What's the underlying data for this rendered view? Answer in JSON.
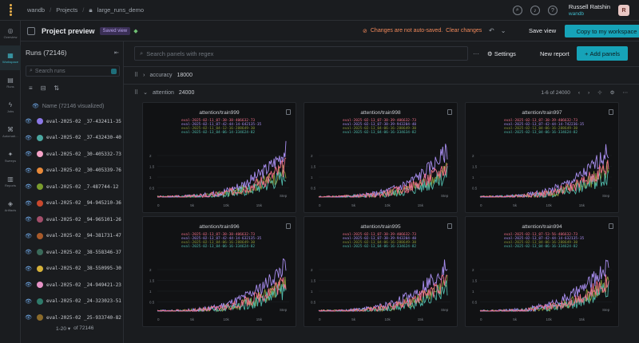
{
  "topbar": {
    "org": "wandb",
    "section": "Projects",
    "project": "large_runs_demo",
    "user_name": "Russell Ratshin",
    "user_team": "wandb",
    "avatar_letter": "R",
    "help_icon": "?"
  },
  "rail": [
    {
      "icon": "◎",
      "label": "Overview",
      "active": false
    },
    {
      "icon": "▦",
      "label": "Workspace",
      "active": true
    },
    {
      "icon": "▤",
      "label": "Runs",
      "active": false
    },
    {
      "icon": "ϟ",
      "label": "Jobs",
      "active": false
    },
    {
      "icon": "⌘",
      "label": "Automati…",
      "active": false
    },
    {
      "icon": "✦",
      "label": "Sweeps",
      "active": false
    },
    {
      "icon": "▥",
      "label": "Reports",
      "active": false
    },
    {
      "icon": "◈",
      "label": "Artifacts",
      "active": false
    }
  ],
  "header": {
    "title": "Project preview",
    "saved_badge": "Saved view",
    "warning": "Changes are not auto-saved.",
    "warning_link": "Clear changes",
    "save_view": "Save view",
    "copy_btn": "Copy to my workspace"
  },
  "runs": {
    "title": "Runs (72146)",
    "search_placeholder": "Search runs",
    "name_header": "Name",
    "name_header_note": "(72146 visualized)",
    "pager": "1-20 ▾",
    "pager_total": "of 72146",
    "rows": [
      {
        "name": "eval-2025-02 _37-432411-35",
        "color": "#8b78e6"
      },
      {
        "name": "eval-2025-02 _37-432430-40",
        "color": "#4aa7a0"
      },
      {
        "name": "eval-2025-02 _30-405332-73",
        "color": "#f5a3c8"
      },
      {
        "name": "eval-2025-02 _30-405339-76",
        "color": "#e88a3a"
      },
      {
        "name": "eval-2025-02 _7-487744-12",
        "color": "#7a9c2d"
      },
      {
        "name": "eval-2025-02 _94-945210-36",
        "color": "#c9482d"
      },
      {
        "name": "eval-2025-02 _94-965101-26",
        "color": "#a34e6a"
      },
      {
        "name": "eval-2025-02 _94-381731-47",
        "color": "#a85a2a"
      },
      {
        "name": "eval-2025-02 _38-558346-37",
        "color": "#3a6a5a"
      },
      {
        "name": "eval-2025-02 _38-550995-30",
        "color": "#d6b23a"
      },
      {
        "name": "eval-2025-02 _24-949421-23",
        "color": "#e693c7"
      },
      {
        "name": "eval-2025-02 _24-323023-51",
        "color": "#2f7a6a"
      },
      {
        "name": "eval-2025-02 _25-933740-82",
        "color": "#8a6a2a"
      }
    ]
  },
  "workspace": {
    "search_placeholder": "Search panels with regex",
    "settings": "Settings",
    "new_report": "New report",
    "add_panels": "Add panels",
    "section1_name": "accuracy",
    "section1_count": "18000",
    "section2_name": "attention",
    "section2_count": "24000",
    "page_info": "1-6 of 24000"
  },
  "chart_data": [
    {
      "type": "line",
      "title": "attention/train999",
      "xlabel": "Step",
      "x_ticks": [
        "0",
        "5k",
        "10k",
        "15k"
      ],
      "y_ticks": [
        "2",
        "1.5",
        "1",
        "0.5"
      ],
      "legend": [
        "eval-2025-02-11_07-38-38-406632-73",
        "eval-2025-02-11_07-42-44-14-642135-35",
        "eval-2025-02-11_04-12-16-288649-30",
        "eval-2025-02-13_04-06-14-334624-82"
      ]
    },
    {
      "type": "line",
      "title": "attention/train998",
      "xlabel": "Step",
      "x_ticks": [
        "0",
        "5k",
        "10k",
        "15k"
      ],
      "y_ticks": [
        "2",
        "1.5",
        "1",
        "0.5"
      ],
      "legend": [
        "eval-2025-02-13_07-38-39-406632-73",
        "eval-2025-02-13_07-38-39-943204-40",
        "eval-2025-02-13_04-06-16-288649-30",
        "eval-2025-02-13_04-06-16-334634-82"
      ]
    },
    {
      "type": "line",
      "title": "attention/train997",
      "xlabel": "Step",
      "x_ticks": [
        "0",
        "5k",
        "10k",
        "15k"
      ],
      "y_ticks": [
        "2",
        "1.5",
        "1",
        "0.5"
      ],
      "legend": [
        "eval-2025-02-13_07-38-39-406632-73",
        "eval-2025-02-13_07-42-44-14-742236-35",
        "eval-2025-02-13_04-06-16-288649-30",
        "eval-2025-02-13_04-06-16-334624-82"
      ]
    },
    {
      "type": "line",
      "title": "attention/train996",
      "xlabel": "Step",
      "x_ticks": [
        "0",
        "5k",
        "10k",
        "15k"
      ],
      "y_ticks": [
        "2",
        "1.5",
        "1",
        "0.5"
      ],
      "legend": [
        "eval-2025-02-13_07-38-38-406632-73",
        "eval-2025-02-13_07-42-44-14-632135-35",
        "eval-2025-02-13_04-06-16-288649-30",
        "eval-2025-02-13_04-06-16-334624-82"
      ]
    },
    {
      "type": "line",
      "title": "attention/train995",
      "xlabel": "Step",
      "x_ticks": [
        "0",
        "5k",
        "10k",
        "15k"
      ],
      "y_ticks": [
        "2",
        "1.5",
        "1",
        "0.5"
      ],
      "legend": [
        "eval-2025-02-13_07-38-39-406632-73",
        "eval-2025-02-13_07-38-39-943204-40",
        "eval-2025-02-13_04-06-16-288649-30",
        "eval-2025-02-13_04-06-16-334624-82"
      ]
    },
    {
      "type": "line",
      "title": "attention/train994",
      "xlabel": "Step",
      "x_ticks": [
        "0",
        "5k",
        "10k",
        "15k"
      ],
      "y_ticks": [
        "2",
        "1.5",
        "1",
        "0.5"
      ],
      "legend": [
        "eval-2025-02-13_07-53-56-406632-73",
        "eval-2025-02-13_07-42-44-14-632135-35",
        "eval-2025-02-13_04-06-16-288649-30",
        "eval-2025-02-13_04-06-16-334624-82"
      ]
    }
  ],
  "series_colors": [
    "#f06e88",
    "#a98ef0",
    "#8c9a3a",
    "#4fb7a8"
  ]
}
